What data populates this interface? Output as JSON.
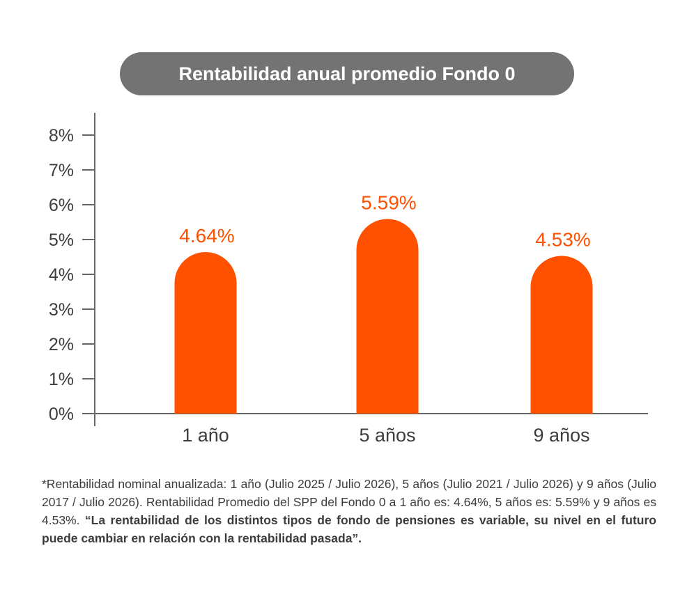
{
  "chart_data": {
    "type": "bar",
    "title": "Rentabilidad anual promedio Fondo 0",
    "categories": [
      "1 año",
      "5 años",
      "9 años"
    ],
    "values": [
      4.64,
      5.59,
      4.53
    ],
    "data_labels": [
      "4.64%",
      "5.59%",
      "4.53%"
    ],
    "y_ticks": [
      0,
      1,
      2,
      3,
      4,
      5,
      6,
      7,
      8
    ],
    "y_tick_labels": [
      "0%",
      "1%",
      "2%",
      "3%",
      "4%",
      "5%",
      "6%",
      "7%",
      "8%"
    ],
    "ylim": [
      0,
      8
    ],
    "xlabel": "",
    "ylabel": "",
    "grid": false,
    "legend": "none",
    "bar_color": "#ff5100",
    "label_color": "#ff5100"
  },
  "footnote": {
    "normal": "*Rentabilidad nominal anualizada: 1 año (Julio 2025 / Julio 2026), 5 años (Julio 2021 / Julio 2026) y 9 años (Julio 2017 / Julio 2026). Rentabilidad Promedio del SPP del Fondo 0 a 1 año es: 4.64%, 5 años es: 5.59% y 9 años es 4.53%.",
    "bold": "“La rentabilidad de los distintos tipos de fondo de pensiones es variable, su nivel en el futuro puede cambiar en relación con la rentabilidad pasada”."
  }
}
